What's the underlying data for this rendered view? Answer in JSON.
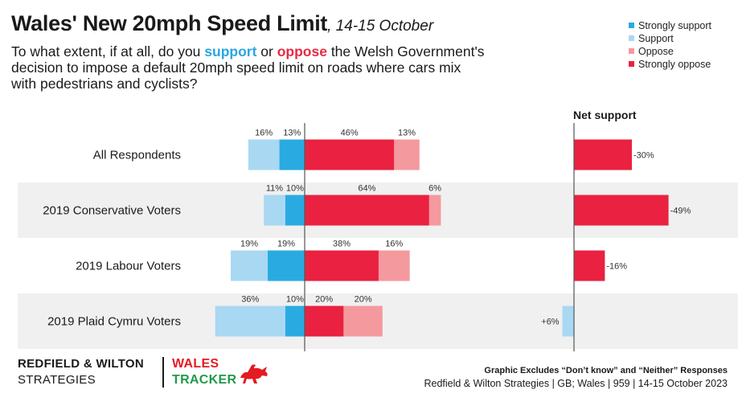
{
  "header": {
    "title": "Wales' New 20mph Speed Limit",
    "date": ", 14-15 October",
    "question_parts": [
      {
        "text": "To what extent, if at all, do you ",
        "style": "plain"
      },
      {
        "text": "support",
        "style": "support"
      },
      {
        "text": " or ",
        "style": "plain"
      },
      {
        "text": "oppose",
        "style": "oppose"
      },
      {
        "text": " the Welsh Government's decision to impose a default 20mph speed limit on roads where cars mix with pedestrians and cyclists?",
        "style": "plain"
      }
    ]
  },
  "legend": [
    {
      "label": "Strongly support",
      "color": "#29abe2"
    },
    {
      "label": "Support",
      "color": "#a9d8f3"
    },
    {
      "label": "Oppose",
      "color": "#f4999e"
    },
    {
      "label": "Strongly oppose",
      "color": "#ea2140"
    }
  ],
  "chart_data": {
    "type": "bar",
    "orientation": "horizontal-diverging",
    "categories": [
      "All Respondents",
      "2019 Conservative Voters",
      "2019 Labour Voters",
      "2019 Plaid Cymru Voters"
    ],
    "series": [
      {
        "name": "Strongly support",
        "values": [
          13,
          10,
          19,
          10
        ],
        "labels": [
          "13%",
          "10%",
          "19%",
          "10%"
        ],
        "color": "#29abe2"
      },
      {
        "name": "Support",
        "values": [
          16,
          11,
          19,
          36
        ],
        "labels": [
          "16%",
          "11%",
          "19%",
          "36%"
        ],
        "color": "#a9d8f3"
      },
      {
        "name": "Strongly oppose",
        "values": [
          46,
          64,
          38,
          20
        ],
        "labels": [
          "46%",
          "64%",
          "38%",
          "20%"
        ],
        "color": "#ea2140"
      },
      {
        "name": "Oppose",
        "values": [
          13,
          6,
          16,
          20
        ],
        "labels": [
          "13%",
          "6%",
          "16%",
          "20%"
        ],
        "color": "#f4999e"
      }
    ],
    "net_support": {
      "title": "Net support",
      "values": [
        -30,
        -49,
        -16,
        6
      ],
      "labels": [
        "-30%",
        "-49%",
        "-16%",
        "+6%"
      ],
      "positive_color": "#a9d8f3",
      "negative_color": "#ea2140"
    }
  },
  "footer": {
    "brand_line1": "REDFIELD & WILTON",
    "brand_line2": "STRATEGIES",
    "tracker_line1": "WALES",
    "tracker_line2": "TRACKER",
    "note": "Graphic Excludes “Don’t know” and “Neither” Responses",
    "source": "Redfield & Wilton Strategies | GB; Wales | 959 | 14-15 October 2023"
  }
}
